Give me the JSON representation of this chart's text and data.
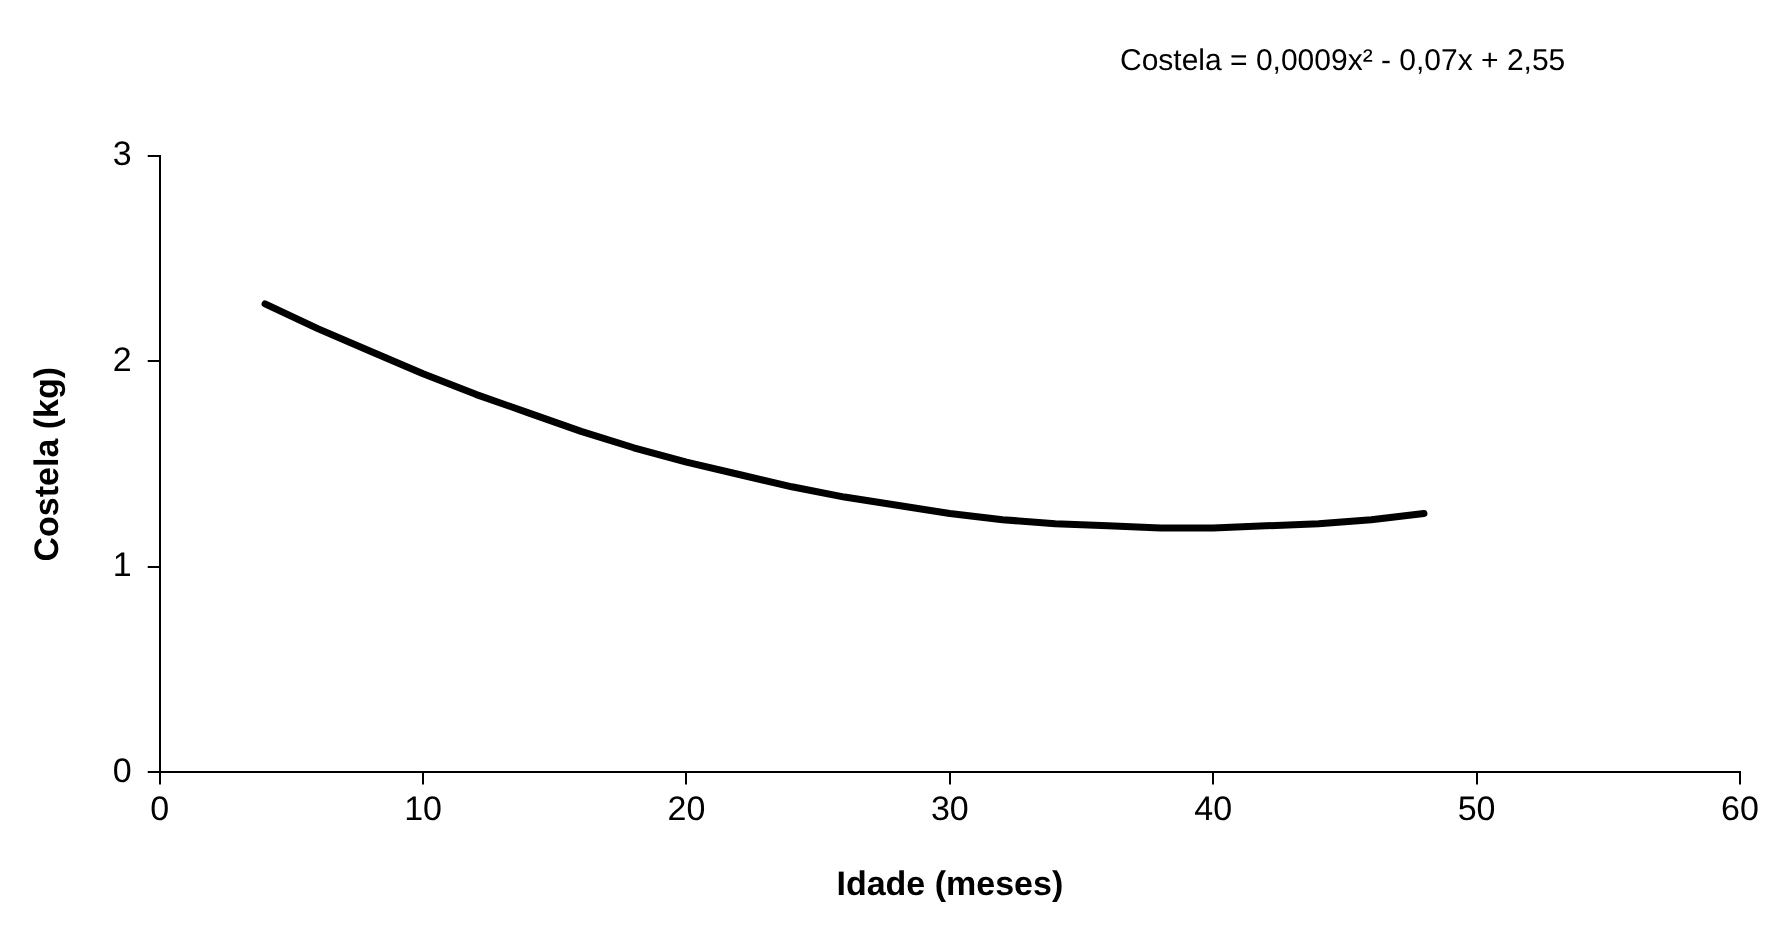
{
  "chart_data": {
    "type": "line",
    "xlabel": "Idade (meses)",
    "ylabel": "Costela (kg)",
    "annotations": [
      "Costela = 0,0009x² - 0,07x + 2,55"
    ],
    "x": [
      4,
      6,
      8,
      10,
      12,
      14,
      16,
      18,
      20,
      22,
      24,
      26,
      28,
      30,
      32,
      34,
      36,
      38,
      40,
      42,
      44,
      46,
      48
    ],
    "series": [
      {
        "color": "#000000",
        "values": [
          2.28,
          2.16,
          2.05,
          1.94,
          1.84,
          1.75,
          1.66,
          1.58,
          1.51,
          1.45,
          1.39,
          1.34,
          1.3,
          1.26,
          1.23,
          1.21,
          1.2,
          1.19,
          1.19,
          1.2,
          1.21,
          1.23,
          1.26
        ]
      }
    ],
    "xlim": [
      0,
      60
    ],
    "xticks": [
      0,
      10,
      20,
      30,
      40,
      50,
      60
    ],
    "ylim": [
      0,
      3
    ],
    "yticks": [
      0,
      1,
      2,
      3
    ],
    "grid": false,
    "legend": false,
    "marker": "none",
    "line_style": "solid"
  }
}
